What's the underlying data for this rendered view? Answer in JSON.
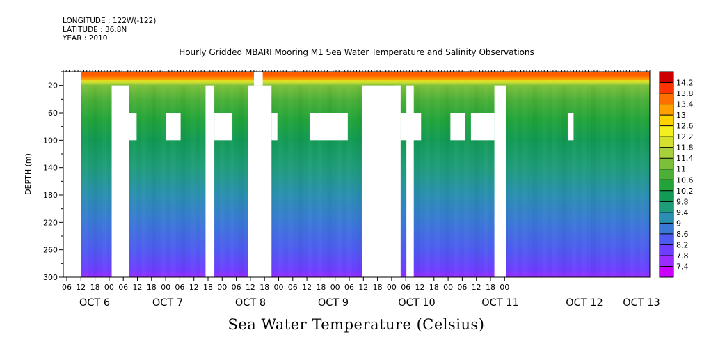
{
  "header": {
    "longitude": "LONGITUDE : 122W(-122)",
    "latitude": "LATITUDE : 36.8N",
    "year": "YEAR : 2010"
  },
  "chart_data": {
    "type": "heatmap",
    "title": "Hourly Gridded MBARI Mooring M1 Sea Water Temperature and Salinity Observations",
    "footer_label": "Sea Water Temperature (Celsius)",
    "ylabel": "DEPTH (m)",
    "ylim": [
      300,
      0
    ],
    "y_ticks": [
      20,
      60,
      100,
      140,
      180,
      220,
      260,
      300
    ],
    "x_hour_ticks": [
      "06",
      "12",
      "18",
      "00",
      "06",
      "12",
      "18",
      "00",
      "06",
      "12",
      "18",
      "00",
      "06",
      "12",
      "18",
      "00",
      "06",
      "12",
      "18",
      "00",
      "06",
      "12",
      "18",
      "00",
      "06",
      "12",
      "18",
      "00",
      "06",
      "12",
      "18",
      "00"
    ],
    "x_day_labels": [
      {
        "label": "OCT  6",
        "hour": 24
      },
      {
        "label": "OCT  7",
        "hour": 48
      },
      {
        "label": "OCT  8",
        "hour": 72
      },
      {
        "label": "OCT  9",
        "hour": 96
      },
      {
        "label": "OCT 10",
        "hour": 120
      },
      {
        "label": "OCT 11",
        "hour": 144
      },
      {
        "label": "OCT 12",
        "hour": 168
      },
      {
        "label": "OCT 13",
        "hour": 180
      }
    ],
    "color_levels": [
      "7.4",
      "7.8",
      "8.2",
      "8.6",
      "9",
      "9.4",
      "9.8",
      "10.2",
      "10.6",
      "11",
      "11.4",
      "11.8",
      "12.2",
      "12.6",
      "13",
      "13.4",
      "13.8",
      "14.2"
    ],
    "colors": [
      "#cc00ff",
      "#9a2cff",
      "#6f3dff",
      "#4f5bf0",
      "#3a78d6",
      "#2a8fb0",
      "#1f9c7a",
      "#139a55",
      "#22a43a",
      "#4cb038",
      "#7cc03a",
      "#a8d03a",
      "#d4e030",
      "#f4f020",
      "#ffd200",
      "#ffa000",
      "#ff6e00",
      "#ff3400",
      "#cc0000"
    ],
    "profile": [
      {
        "depth": 5,
        "temp": 13.8
      },
      {
        "depth": 10,
        "temp": 13.0
      },
      {
        "depth": 15,
        "temp": 12.0
      },
      {
        "depth": 20,
        "temp": 11.4
      },
      {
        "depth": 40,
        "temp": 10.8
      },
      {
        "depth": 70,
        "temp": 10.4
      },
      {
        "depth": 100,
        "temp": 10.0
      },
      {
        "depth": 140,
        "temp": 9.6
      },
      {
        "depth": 180,
        "temp": 9.2
      },
      {
        "depth": 220,
        "temp": 8.8
      },
      {
        "depth": 260,
        "temp": 8.3
      },
      {
        "depth": 290,
        "temp": 7.9
      },
      {
        "depth": 300,
        "temp": 7.7
      }
    ],
    "gaps_hours_depth": [
      {
        "t0": 0,
        "t1": 6,
        "d0": 0,
        "d1": 300
      },
      {
        "t0": 16.5,
        "t1": 22.5,
        "d0": 20,
        "d1": 300
      },
      {
        "t0": 22.5,
        "t1": 25,
        "d0": 60,
        "d1": 100
      },
      {
        "t0": 35,
        "t1": 40,
        "d0": 60,
        "d1": 100
      },
      {
        "t0": 48.5,
        "t1": 51.5,
        "d0": 20,
        "d1": 300
      },
      {
        "t0": 51.5,
        "t1": 57.5,
        "d0": 60,
        "d1": 100
      },
      {
        "t0": 63,
        "t1": 71,
        "d0": 20,
        "d1": 300
      },
      {
        "t0": 71,
        "t1": 73,
        "d0": 60,
        "d1": 100
      },
      {
        "t0": 65,
        "t1": 68,
        "d0": 0,
        "d1": 20
      },
      {
        "t0": 84,
        "t1": 97,
        "d0": 60,
        "d1": 100
      },
      {
        "t0": 102,
        "t1": 115,
        "d0": 20,
        "d1": 300
      },
      {
        "t0": 115,
        "t1": 122,
        "d0": 60,
        "d1": 100
      },
      {
        "t0": 113,
        "t1": 115,
        "d0": 20,
        "d1": 300
      },
      {
        "t0": 117,
        "t1": 119.5,
        "d0": 20,
        "d1": 300
      },
      {
        "t0": 132,
        "t1": 137,
        "d0": 60,
        "d1": 100
      },
      {
        "t0": 139,
        "t1": 147,
        "d0": 60,
        "d1": 100
      },
      {
        "t0": 147,
        "t1": 151,
        "d0": 20,
        "d1": 300
      },
      {
        "t0": 172,
        "t1": 174,
        "d0": 60,
        "d1": 100
      }
    ]
  }
}
